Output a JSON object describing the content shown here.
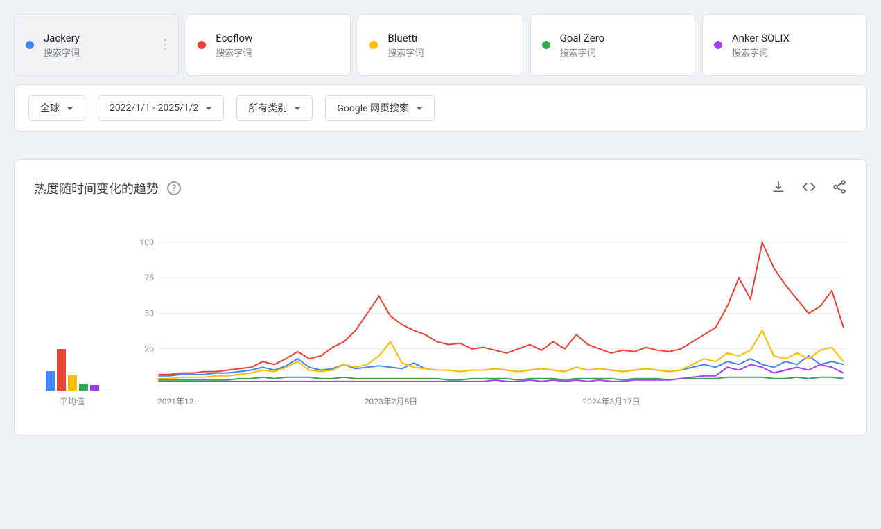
{
  "terms": [
    {
      "name": "Jackery",
      "sub": "搜索字词",
      "color": "#4285f4",
      "selected": true,
      "menu": true
    },
    {
      "name": "Ecoflow",
      "sub": "搜索字词",
      "color": "#ea4335",
      "selected": false,
      "menu": false
    },
    {
      "name": "Bluetti",
      "sub": "搜索字词",
      "color": "#fbbc04",
      "selected": false,
      "menu": false
    },
    {
      "name": "Goal Zero",
      "sub": "搜索字词",
      "color": "#34a853",
      "selected": false,
      "menu": false
    },
    {
      "name": "Anker SOLIX",
      "sub": "搜索字词",
      "color": "#a142f4",
      "selected": false,
      "menu": false
    }
  ],
  "filters": {
    "region": "全球",
    "timerange": "2022/1/1 - 2025/1/2",
    "category": "所有类别",
    "source": "Google 网页搜索"
  },
  "chart": {
    "title": "热度随时间变化的趋势",
    "ylim": [
      0,
      100
    ],
    "yticks": [
      25,
      50,
      75,
      100
    ],
    "xlabels": [
      "2021年12…",
      "2023年2月5日",
      "2024年3月17日"
    ],
    "avg_label": "平均值",
    "avg_bars": [
      {
        "color": "#4285f4",
        "h": 28
      },
      {
        "color": "#ea4335",
        "h": 60
      },
      {
        "color": "#fbbc04",
        "h": 22
      },
      {
        "color": "#34a853",
        "h": 10
      },
      {
        "color": "#a142f4",
        "h": 8
      }
    ],
    "grid_color": "#e8eaed",
    "background": "#ffffff",
    "n_points": 60,
    "series": [
      {
        "color": "#4285f4",
        "values": [
          6,
          6,
          7,
          7,
          7,
          8,
          8,
          9,
          10,
          12,
          10,
          13,
          18,
          12,
          10,
          11,
          14,
          11,
          12,
          13,
          12,
          11,
          15,
          11,
          10,
          10,
          9,
          10,
          10,
          11,
          10,
          9,
          10,
          11,
          10,
          9,
          12,
          10,
          11,
          10,
          9,
          10,
          11,
          10,
          9,
          10,
          12,
          14,
          12,
          16,
          14,
          18,
          14,
          12,
          16,
          14,
          20,
          14,
          16,
          14
        ]
      },
      {
        "color": "#ea4335",
        "values": [
          7,
          7,
          8,
          8,
          9,
          9,
          10,
          11,
          12,
          16,
          14,
          18,
          23,
          18,
          20,
          26,
          30,
          38,
          50,
          62,
          48,
          42,
          38,
          35,
          30,
          28,
          29,
          25,
          26,
          24,
          22,
          25,
          28,
          24,
          30,
          25,
          35,
          28,
          25,
          22,
          24,
          23,
          26,
          24,
          23,
          25,
          30,
          35,
          40,
          55,
          75,
          60,
          100,
          82,
          70,
          60,
          50,
          55,
          66,
          40
        ]
      },
      {
        "color": "#fbbc04",
        "values": [
          4,
          4,
          5,
          5,
          5,
          6,
          6,
          7,
          8,
          10,
          9,
          12,
          16,
          10,
          9,
          10,
          14,
          12,
          14,
          20,
          30,
          15,
          12,
          11,
          10,
          10,
          9,
          10,
          10,
          11,
          10,
          9,
          10,
          11,
          10,
          9,
          12,
          10,
          11,
          10,
          9,
          10,
          11,
          10,
          9,
          10,
          14,
          18,
          16,
          22,
          20,
          24,
          38,
          20,
          18,
          22,
          18,
          24,
          26,
          16
        ]
      },
      {
        "color": "#34a853",
        "values": [
          3,
          3,
          3,
          3,
          3,
          3,
          3,
          4,
          4,
          5,
          4,
          5,
          5,
          5,
          4,
          4,
          5,
          4,
          4,
          4,
          4,
          4,
          4,
          4,
          4,
          3,
          3,
          4,
          4,
          4,
          4,
          3,
          4,
          4,
          4,
          3,
          4,
          4,
          4,
          4,
          3,
          4,
          4,
          4,
          3,
          4,
          4,
          4,
          4,
          5,
          5,
          5,
          5,
          4,
          4,
          5,
          4,
          5,
          5,
          4
        ]
      },
      {
        "color": "#a142f4",
        "values": [
          2,
          2,
          2,
          2,
          2,
          2,
          2,
          2,
          2,
          2,
          2,
          2,
          2,
          2,
          2,
          2,
          2,
          2,
          2,
          2,
          2,
          2,
          2,
          2,
          2,
          2,
          2,
          2,
          2,
          3,
          2,
          2,
          3,
          2,
          3,
          2,
          3,
          2,
          3,
          2,
          2,
          3,
          3,
          3,
          3,
          4,
          5,
          6,
          6,
          12,
          10,
          14,
          12,
          8,
          10,
          12,
          10,
          14,
          12,
          8
        ]
      }
    ]
  }
}
